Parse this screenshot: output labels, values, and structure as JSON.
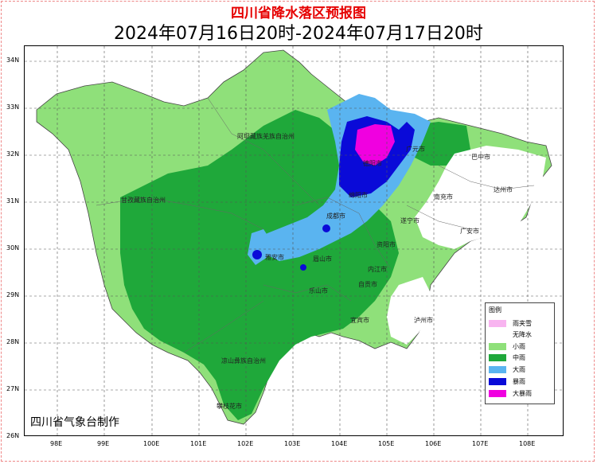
{
  "title": "四川省降水落区预报图",
  "subtitle": "2024年07月16日20时-2024年07月17日20时",
  "agency": "四川省气象台制作",
  "lat_ticks": [
    "34N",
    "33N",
    "32N",
    "31N",
    "30N",
    "29N",
    "28N",
    "27N",
    "26N"
  ],
  "lon_ticks": [
    "98E",
    "99E",
    "100E",
    "101E",
    "102E",
    "103E",
    "104E",
    "105E",
    "106E",
    "107E",
    "108E"
  ],
  "legend": {
    "title": "图例",
    "items": [
      {
        "label": "雨夹雪",
        "color": "#f8b4f0"
      },
      {
        "label": "无降水",
        "color": "#ffffff"
      },
      {
        "label": "小雨",
        "color": "#8fe07a"
      },
      {
        "label": "中雨",
        "color": "#1fa83a"
      },
      {
        "label": "大雨",
        "color": "#5ab4f0"
      },
      {
        "label": "暴雨",
        "color": "#0a0ad8"
      },
      {
        "label": "大暴雨",
        "color": "#f000e0"
      }
    ]
  },
  "cities": {
    "aba": "阿坝藏族羌族自治州",
    "ganzi": "甘孜藏族自治州",
    "liangshan": "凉山彝族自治州",
    "panzhihua": "攀枝花市",
    "guangyuan": "广元市",
    "bazhong": "巴中市",
    "dazhou": "达州市",
    "nanchong": "南充市",
    "guangan": "广安市",
    "suining": "遂宁市",
    "mianyang": "绵阳市",
    "deyang": "德阳市",
    "chengdu": "成都市",
    "ziyang": "资阳市",
    "neijiang": "内江市",
    "zigong": "自贡市",
    "meishan": "眉山市",
    "yaan": "雅安市",
    "leshan": "乐山市",
    "yibin": "宜宾市",
    "luzhou": "泸州市"
  }
}
